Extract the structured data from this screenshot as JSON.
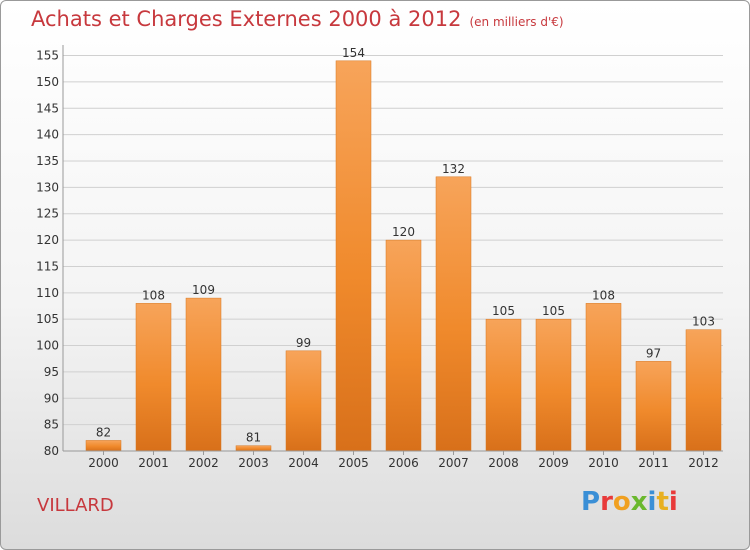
{
  "chart_data": {
    "type": "bar",
    "title": "Achats et Charges Externes 2000 à 2012",
    "subtitle": "(en milliers d'€)",
    "categories": [
      "2000",
      "2001",
      "2002",
      "2003",
      "2004",
      "2005",
      "2006",
      "2007",
      "2008",
      "2009",
      "2010",
      "2011",
      "2012"
    ],
    "values": [
      82,
      108,
      109,
      81,
      99,
      154,
      120,
      132,
      105,
      105,
      108,
      97,
      103
    ],
    "ylim": [
      80,
      157
    ],
    "yticks": [
      80,
      85,
      90,
      95,
      100,
      105,
      110,
      115,
      120,
      125,
      130,
      135,
      140,
      145,
      150,
      155
    ],
    "grid": true,
    "bar_color": "#f08a2c"
  },
  "footer": {
    "city": "VILLARD",
    "logo": "Proxiti"
  },
  "colors": {
    "title": "#c7383d",
    "logo": [
      "#3a8fd6",
      "#e83a3a",
      "#f0a020",
      "#6ab82e",
      "#3a8fd6",
      "#e8b020",
      "#e83a3a"
    ]
  }
}
